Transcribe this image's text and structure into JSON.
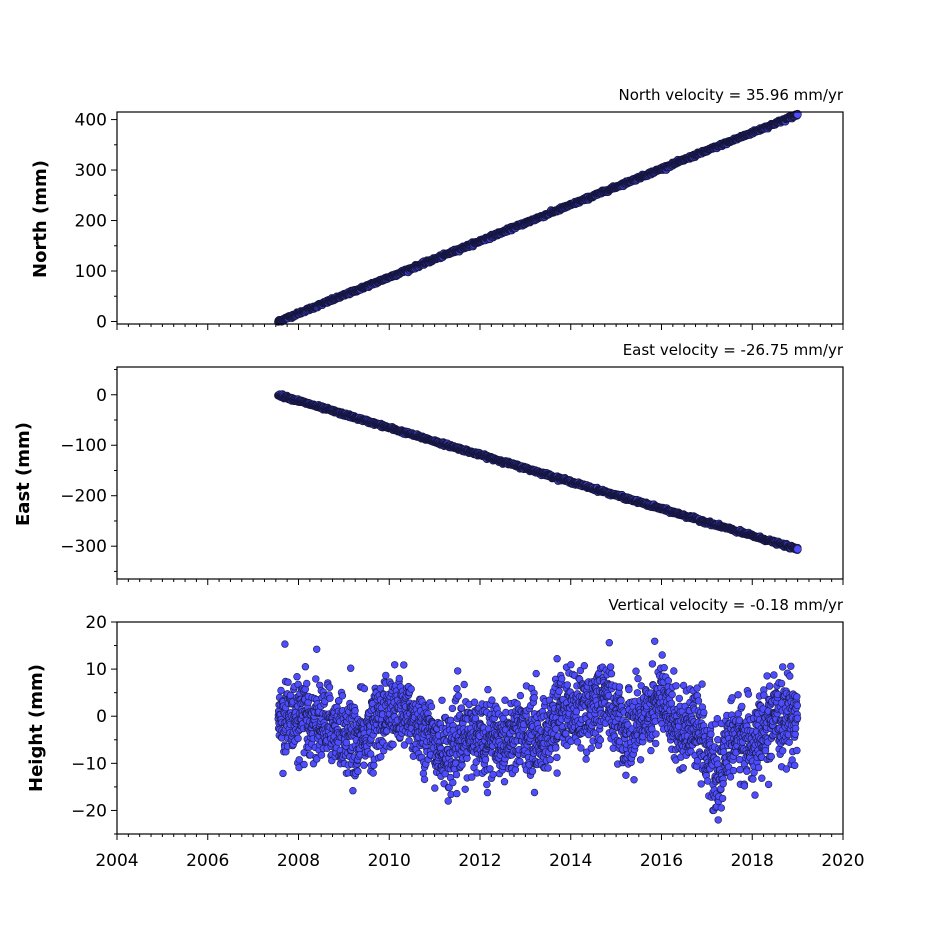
{
  "chart_data": [
    {
      "type": "scatter",
      "title": "North velocity = 35.96 mm/yr",
      "xlabel": "",
      "ylabel": "North (mm)",
      "xlim": [
        2004,
        2020
      ],
      "ylim": [
        -5,
        415
      ],
      "yticks": [
        0,
        100,
        200,
        300,
        400
      ],
      "series": [
        {
          "color": "#4d4dff",
          "trend": {
            "x_start": 2007.55,
            "y_start": 0,
            "x_end": 2019.0,
            "y_end": 410,
            "slope": 35.96
          }
        }
      ]
    },
    {
      "type": "scatter",
      "title": "East velocity = -26.75 mm/yr",
      "xlabel": "",
      "ylabel": "East (mm)",
      "xlim": [
        2004,
        2020
      ],
      "ylim": [
        -365,
        55
      ],
      "yticks": [
        0,
        -100,
        -200,
        -300
      ],
      "series": [
        {
          "color": "#4d4dff",
          "trend": {
            "x_start": 2007.55,
            "y_start": 0,
            "x_end": 2019.0,
            "y_end": -306,
            "slope": -26.75
          }
        }
      ]
    },
    {
      "type": "scatter",
      "title": "Vertical velocity = -0.18 mm/yr",
      "xlabel": "",
      "ylabel": "Height (mm)",
      "xlim": [
        2004,
        2020
      ],
      "ylim": [
        -25,
        20
      ],
      "yticks": [
        20,
        10,
        0,
        -10,
        -20
      ],
      "xticks": [
        2004,
        2006,
        2008,
        2010,
        2012,
        2014,
        2016,
        2018,
        2020
      ],
      "series": [
        {
          "color": "#4d4dff",
          "x_range": [
            2007.55,
            2019.0
          ],
          "seasonal_profile": [
            {
              "x": 2007.6,
              "y": 0
            },
            {
              "x": 2008.2,
              "y": -1
            },
            {
              "x": 2008.8,
              "y": -2
            },
            {
              "x": 2009.3,
              "y": -6
            },
            {
              "x": 2009.8,
              "y": 0
            },
            {
              "x": 2010.3,
              "y": 1
            },
            {
              "x": 2010.8,
              "y": -3
            },
            {
              "x": 2011.2,
              "y": -8
            },
            {
              "x": 2011.6,
              "y": -5
            },
            {
              "x": 2012.0,
              "y": -4
            },
            {
              "x": 2012.5,
              "y": -5
            },
            {
              "x": 2013.0,
              "y": -3
            },
            {
              "x": 2013.4,
              "y": -5
            },
            {
              "x": 2013.8,
              "y": 2
            },
            {
              "x": 2014.3,
              "y": 1
            },
            {
              "x": 2014.8,
              "y": 4
            },
            {
              "x": 2015.2,
              "y": -4
            },
            {
              "x": 2015.6,
              "y": 0
            },
            {
              "x": 2016.0,
              "y": 4
            },
            {
              "x": 2016.4,
              "y": -3
            },
            {
              "x": 2016.8,
              "y": -1
            },
            {
              "x": 2017.2,
              "y": -14
            },
            {
              "x": 2017.6,
              "y": -4
            },
            {
              "x": 2018.0,
              "y": -6
            },
            {
              "x": 2018.5,
              "y": -1
            },
            {
              "x": 2019.0,
              "y": 0
            }
          ],
          "scatter_spread": 4,
          "outliers": [
            {
              "x": 2007.7,
              "y": 15.3
            },
            {
              "x": 2008.4,
              "y": 14.2
            },
            {
              "x": 2015.85,
              "y": 15.9
            },
            {
              "x": 2014.85,
              "y": 15.6
            },
            {
              "x": 2017.25,
              "y": -22.0
            },
            {
              "x": 2011.3,
              "y": -18.0
            },
            {
              "x": 2013.2,
              "y": -16.2
            },
            {
              "x": 2018.85,
              "y": 10.6
            },
            {
              "x": 2009.15,
              "y": 10.2
            },
            {
              "x": 2013.7,
              "y": 12.2
            }
          ]
        }
      ]
    }
  ]
}
